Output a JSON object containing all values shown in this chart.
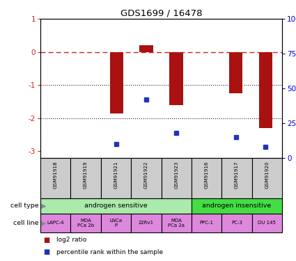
{
  "title": "GDS1699 / 16478",
  "samples": [
    "GSM91918",
    "GSM91919",
    "GSM91921",
    "GSM91922",
    "GSM91923",
    "GSM91916",
    "GSM91917",
    "GSM91920"
  ],
  "log2_ratio": [
    0.0,
    0.0,
    -1.85,
    0.2,
    -1.6,
    0.0,
    -1.25,
    -2.3
  ],
  "percentile_rank": [
    null,
    null,
    10,
    42,
    18,
    null,
    15,
    8
  ],
  "bar_color": "#aa1111",
  "dot_color": "#2233bb",
  "zero_line_color": "#cc2222",
  "dotted_line_color": "#222222",
  "ylim_left": [
    -3.2,
    1.0
  ],
  "ylim_right": [
    0,
    100
  ],
  "cell_type_groups": [
    {
      "label": "androgen sensitive",
      "start": 0,
      "end": 5,
      "color": "#aaeaaa"
    },
    {
      "label": "androgen insensitive",
      "start": 5,
      "end": 8,
      "color": "#44dd44"
    }
  ],
  "cell_lines": [
    "LAPC-4",
    "MDA\nPCa 2b",
    "LNCa\nP",
    "22Rv1",
    "MDA\nPCa 2a",
    "PPC-1",
    "PC-3",
    "DU 145"
  ],
  "cell_line_color": "#dd88dd",
  "gsm_label_color": "#cccccc",
  "legend_label_log2": "log2 ratio",
  "legend_label_pct": "percentile rank within the sample"
}
